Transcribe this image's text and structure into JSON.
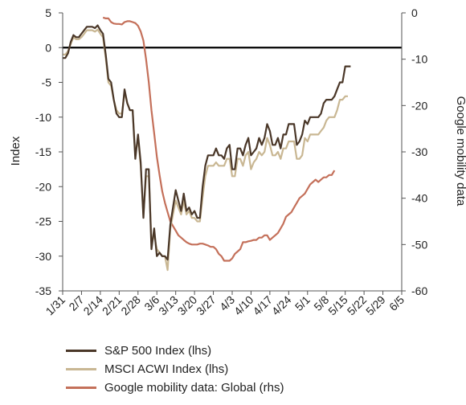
{
  "chart_data": {
    "type": "line",
    "title": "",
    "ylabel_left": "Index",
    "ylabel_right": "Google mobility data",
    "ylim_left": [
      -35,
      5
    ],
    "ylim_right": [
      -60,
      0
    ],
    "yticks_left": [
      "5",
      "0",
      "-5",
      "-10",
      "-15",
      "-20",
      "-25",
      "-30",
      "-35"
    ],
    "yticks_right": [
      "0",
      "-10",
      "-20",
      "-30",
      "-40",
      "-50",
      "-60"
    ],
    "x_tick_labels": [
      "1/31",
      "2/7",
      "2/14",
      "2/21",
      "2/28",
      "3/6",
      "3/13",
      "3/20",
      "3/27",
      "4/3",
      "4/10",
      "4/17",
      "4/24",
      "5/1",
      "5/8",
      "5/15",
      "5/22",
      "5/29",
      "6/5"
    ],
    "x_range_days": [
      31,
      157
    ],
    "zero_line": true,
    "legend_position": "bottom",
    "series": [
      {
        "name": "S&P 500 Index (lhs)",
        "axis": "left",
        "color": "#4a3728",
        "points": [
          [
            31,
            -1.5
          ],
          [
            32,
            -1.5
          ],
          [
            33,
            -0.8
          ],
          [
            34,
            0.8
          ],
          [
            35,
            1.8
          ],
          [
            36,
            1.5
          ],
          [
            37,
            1.5
          ],
          [
            38,
            2.0
          ],
          [
            39,
            2.5
          ],
          [
            40,
            3.0
          ],
          [
            41,
            3.0
          ],
          [
            42,
            3.0
          ],
          [
            43,
            2.8
          ],
          [
            44,
            3.2
          ],
          [
            45,
            2.5
          ],
          [
            46,
            2.0
          ],
          [
            47,
            -1.0
          ],
          [
            48,
            -4.5
          ],
          [
            49,
            -5.0
          ],
          [
            50,
            -7.5
          ],
          [
            51,
            -9.5
          ],
          [
            52,
            -10.0
          ],
          [
            53,
            -10.0
          ],
          [
            54,
            -6.0
          ],
          [
            55,
            -8.0
          ],
          [
            56,
            -9.0
          ],
          [
            57,
            -9.0
          ],
          [
            58,
            -16.0
          ],
          [
            59,
            -12.5
          ],
          [
            60,
            -16.5
          ],
          [
            61,
            -24.5
          ],
          [
            62,
            -17.5
          ],
          [
            63,
            -17.5
          ],
          [
            64,
            -29.0
          ],
          [
            65,
            -26.0
          ],
          [
            66,
            -30.0
          ],
          [
            67,
            -29.5
          ],
          [
            68,
            -30.0
          ],
          [
            69,
            -30.0
          ],
          [
            70,
            -30.5
          ],
          [
            71,
            -25.5
          ],
          [
            72,
            -23.0
          ],
          [
            73,
            -20.5
          ],
          [
            74,
            -22.0
          ],
          [
            75,
            -23.5
          ],
          [
            76,
            -21.0
          ],
          [
            77,
            -23.5
          ],
          [
            78,
            -23.0
          ],
          [
            79,
            -24.0
          ],
          [
            80,
            -23.5
          ],
          [
            81,
            -24.5
          ],
          [
            82,
            -24.5
          ],
          [
            83,
            -20.0
          ],
          [
            84,
            -17.0
          ],
          [
            85,
            -15.5
          ],
          [
            86,
            -15.5
          ],
          [
            87,
            -15.5
          ],
          [
            88,
            -14.5
          ],
          [
            89,
            -15.5
          ],
          [
            90,
            -15.5
          ],
          [
            91,
            -16.0
          ],
          [
            92,
            -14.5
          ],
          [
            93,
            -14.0
          ],
          [
            94,
            -17.5
          ],
          [
            95,
            -17.5
          ],
          [
            96,
            -14.5
          ],
          [
            97,
            -14.5
          ],
          [
            98,
            -15.5
          ],
          [
            99,
            -14.0
          ],
          [
            100,
            -13.0
          ],
          [
            101,
            -15.5
          ],
          [
            102,
            -15.0
          ],
          [
            103,
            -14.5
          ],
          [
            104,
            -13.0
          ],
          [
            105,
            -14.0
          ],
          [
            106,
            -13.0
          ],
          [
            107,
            -11.0
          ],
          [
            108,
            -12.0
          ],
          [
            109,
            -14.0
          ],
          [
            110,
            -14.0
          ],
          [
            111,
            -13.0
          ],
          [
            112,
            -14.5
          ],
          [
            113,
            -12.5
          ],
          [
            114,
            -12.5
          ],
          [
            115,
            -11.0
          ],
          [
            116,
            -11.0
          ],
          [
            117,
            -11.0
          ],
          [
            118,
            -14.0
          ],
          [
            119,
            -13.5
          ],
          [
            120,
            -12.5
          ],
          [
            121,
            -10.5
          ],
          [
            122,
            -11.0
          ],
          [
            123,
            -10.0
          ],
          [
            124,
            -10.0
          ],
          [
            125,
            -10.0
          ],
          [
            126,
            -10.0
          ],
          [
            127,
            -9.5
          ],
          [
            128,
            -8.0
          ],
          [
            129,
            -7.5
          ],
          [
            130,
            -7.5
          ],
          [
            131,
            -7.5
          ],
          [
            132,
            -7.0
          ],
          [
            133,
            -6.0
          ],
          [
            134,
            -5.0
          ],
          [
            135,
            -5.0
          ],
          [
            136,
            -2.7
          ],
          [
            137,
            -2.7
          ],
          [
            138,
            -2.7
          ]
        ]
      },
      {
        "name": "MSCI ACWI Index (lhs)",
        "axis": "left",
        "color": "#c9b793",
        "points": [
          [
            31,
            -1.0
          ],
          [
            32,
            -1.0
          ],
          [
            33,
            -0.5
          ],
          [
            34,
            0.5
          ],
          [
            35,
            1.5
          ],
          [
            36,
            1.2
          ],
          [
            37,
            1.2
          ],
          [
            38,
            1.5
          ],
          [
            39,
            2.0
          ],
          [
            40,
            2.5
          ],
          [
            41,
            2.5
          ],
          [
            42,
            2.5
          ],
          [
            43,
            2.3
          ],
          [
            44,
            2.6
          ],
          [
            45,
            2.0
          ],
          [
            46,
            1.5
          ],
          [
            47,
            -1.5
          ],
          [
            48,
            -5.0
          ],
          [
            49,
            -5.5
          ],
          [
            50,
            -7.5
          ],
          [
            51,
            -9.0
          ],
          [
            52,
            -9.5
          ],
          [
            53,
            -9.5
          ],
          [
            54,
            -6.5
          ],
          [
            55,
            -8.0
          ],
          [
            56,
            -9.0
          ],
          [
            57,
            -9.0
          ],
          [
            58,
            -15.5
          ],
          [
            59,
            -13.0
          ],
          [
            60,
            -17.0
          ],
          [
            61,
            -24.0
          ],
          [
            62,
            -18.5
          ],
          [
            63,
            -18.5
          ],
          [
            64,
            -28.0
          ],
          [
            65,
            -27.0
          ],
          [
            66,
            -29.0
          ],
          [
            67,
            -29.5
          ],
          [
            68,
            -30.0
          ],
          [
            69,
            -30.0
          ],
          [
            70,
            -32.0
          ],
          [
            71,
            -26.0
          ],
          [
            72,
            -24.0
          ],
          [
            73,
            -22.0
          ],
          [
            74,
            -23.0
          ],
          [
            75,
            -24.0
          ],
          [
            76,
            -22.0
          ],
          [
            77,
            -24.0
          ],
          [
            78,
            -23.5
          ],
          [
            79,
            -24.5
          ],
          [
            80,
            -24.5
          ],
          [
            81,
            -25.0
          ],
          [
            82,
            -25.0
          ],
          [
            83,
            -21.5
          ],
          [
            84,
            -18.5
          ],
          [
            85,
            -17.0
          ],
          [
            86,
            -17.0
          ],
          [
            87,
            -17.0
          ],
          [
            88,
            -16.5
          ],
          [
            89,
            -17.0
          ],
          [
            90,
            -17.0
          ],
          [
            91,
            -17.0
          ],
          [
            92,
            -16.0
          ],
          [
            93,
            -16.0
          ],
          [
            94,
            -18.5
          ],
          [
            95,
            -18.5
          ],
          [
            96,
            -16.0
          ],
          [
            97,
            -16.0
          ],
          [
            98,
            -17.0
          ],
          [
            99,
            -15.5
          ],
          [
            100,
            -15.0
          ],
          [
            101,
            -17.5
          ],
          [
            102,
            -16.5
          ],
          [
            103,
            -16.0
          ],
          [
            104,
            -15.0
          ],
          [
            105,
            -15.5
          ],
          [
            106,
            -15.0
          ],
          [
            107,
            -13.0
          ],
          [
            108,
            -14.0
          ],
          [
            109,
            -15.5
          ],
          [
            110,
            -15.5
          ],
          [
            111,
            -15.0
          ],
          [
            112,
            -16.0
          ],
          [
            113,
            -14.5
          ],
          [
            114,
            -14.5
          ],
          [
            115,
            -13.5
          ],
          [
            116,
            -13.5
          ],
          [
            117,
            -13.5
          ],
          [
            118,
            -16.0
          ],
          [
            119,
            -16.0
          ],
          [
            120,
            -15.5
          ],
          [
            121,
            -13.0
          ],
          [
            122,
            -13.5
          ],
          [
            123,
            -12.5
          ],
          [
            124,
            -12.5
          ],
          [
            125,
            -12.5
          ],
          [
            126,
            -12.5
          ],
          [
            127,
            -12.0
          ],
          [
            128,
            -11.5
          ],
          [
            129,
            -10.5
          ],
          [
            130,
            -10.0
          ],
          [
            131,
            -10.0
          ],
          [
            132,
            -10.0
          ],
          [
            133,
            -9.0
          ],
          [
            134,
            -7.5
          ],
          [
            135,
            -7.5
          ],
          [
            136,
            -7.0
          ],
          [
            137,
            -7.0
          ]
        ]
      },
      {
        "name": "Google mobility data: Global (rhs)",
        "axis": "right",
        "color": "#c4705a",
        "points": [
          [
            46,
            -1.0
          ],
          [
            47,
            -1.2
          ],
          [
            48,
            -1.2
          ],
          [
            49,
            -2.0
          ],
          [
            50,
            -2.3
          ],
          [
            51,
            -2.4
          ],
          [
            52,
            -2.4
          ],
          [
            53,
            -2.5
          ],
          [
            54,
            -2.0
          ],
          [
            55,
            -1.8
          ],
          [
            56,
            -1.8
          ],
          [
            57,
            -2.0
          ],
          [
            58,
            -2.2
          ],
          [
            59,
            -2.8
          ],
          [
            60,
            -4.0
          ],
          [
            61,
            -6.0
          ],
          [
            62,
            -10.0
          ],
          [
            63,
            -15.0
          ],
          [
            64,
            -21.0
          ],
          [
            65,
            -26.0
          ],
          [
            66,
            -31.0
          ],
          [
            67,
            -35.0
          ],
          [
            68,
            -38.5
          ],
          [
            69,
            -41.0
          ],
          [
            70,
            -43.0
          ],
          [
            71,
            -45.0
          ],
          [
            72,
            -46.0
          ],
          [
            73,
            -47.0
          ],
          [
            74,
            -48.0
          ],
          [
            75,
            -48.5
          ],
          [
            76,
            -49.0
          ],
          [
            77,
            -49.5
          ],
          [
            78,
            -49.8
          ],
          [
            79,
            -50.0
          ],
          [
            80,
            -50.0
          ],
          [
            81,
            -50.0
          ],
          [
            82,
            -49.8
          ],
          [
            83,
            -49.8
          ],
          [
            84,
            -50.0
          ],
          [
            85,
            -50.2
          ],
          [
            86,
            -50.5
          ],
          [
            87,
            -50.5
          ],
          [
            88,
            -51.0
          ],
          [
            89,
            -52.0
          ],
          [
            90,
            -52.5
          ],
          [
            91,
            -53.5
          ],
          [
            92,
            -53.5
          ],
          [
            93,
            -53.5
          ],
          [
            94,
            -53.0
          ],
          [
            95,
            -52.0
          ],
          [
            96,
            -51.5
          ],
          [
            97,
            -51.0
          ],
          [
            98,
            -49.5
          ],
          [
            99,
            -49.5
          ],
          [
            100,
            -49.3
          ],
          [
            101,
            -49.2
          ],
          [
            102,
            -49.0
          ],
          [
            103,
            -49.0
          ],
          [
            104,
            -48.5
          ],
          [
            105,
            -48.5
          ],
          [
            106,
            -48.0
          ],
          [
            107,
            -48.0
          ],
          [
            108,
            -49.0
          ],
          [
            109,
            -48.5
          ],
          [
            110,
            -48.0
          ],
          [
            111,
            -47.5
          ],
          [
            112,
            -46.5
          ],
          [
            113,
            -45.5
          ],
          [
            114,
            -44.0
          ],
          [
            115,
            -43.5
          ],
          [
            116,
            -43.0
          ],
          [
            117,
            -42.0
          ],
          [
            118,
            -41.0
          ],
          [
            119,
            -40.0
          ],
          [
            120,
            -39.5
          ],
          [
            121,
            -39.0
          ],
          [
            122,
            -38.0
          ],
          [
            123,
            -37.0
          ],
          [
            124,
            -36.5
          ],
          [
            125,
            -36.0
          ],
          [
            126,
            -36.5
          ],
          [
            127,
            -36.0
          ],
          [
            128,
            -35.5
          ],
          [
            129,
            -35.5
          ],
          [
            130,
            -35.0
          ],
          [
            131,
            -35.0
          ],
          [
            132,
            -34.0
          ]
        ]
      }
    ]
  }
}
